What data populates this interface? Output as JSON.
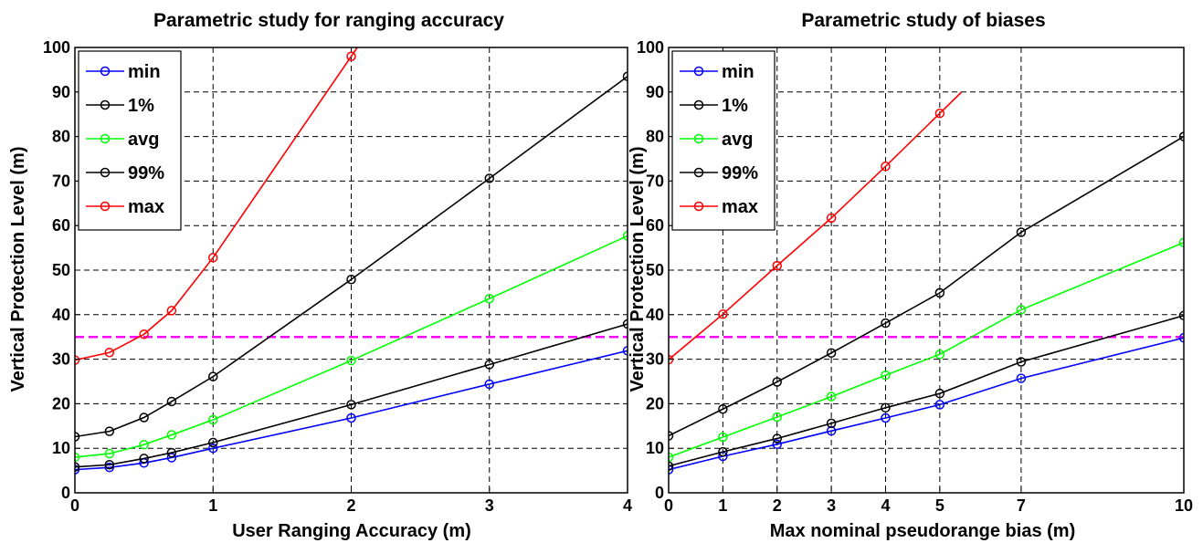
{
  "chart_data": [
    {
      "type": "line",
      "title": "Parametric study for ranging accuracy",
      "xlabel": "User Ranging Accuracy (m)",
      "ylabel": "Vertical Protection Level (m)",
      "xlim": [
        0,
        4
      ],
      "ylim": [
        0,
        100
      ],
      "xticks": [
        0,
        1,
        2,
        3,
        4
      ],
      "yticks": [
        0,
        10,
        20,
        30,
        40,
        50,
        60,
        70,
        80,
        90,
        100
      ],
      "grid": true,
      "legend_position": "top-left",
      "threshold": {
        "y": 35,
        "color": "#ff00ff",
        "style": "dashed"
      },
      "x": [
        0,
        0.25,
        0.5,
        0.7,
        1,
        2,
        3,
        4
      ],
      "series": [
        {
          "name": "min",
          "color": "#0000ff",
          "values": [
            5.2,
            5.7,
            6.7,
            7.9,
            10.0,
            16.8,
            24.4,
            31.9
          ]
        },
        {
          "name": "1%",
          "color": "#000000",
          "values": [
            5.8,
            6.3,
            7.7,
            9.0,
            11.3,
            19.8,
            28.8,
            37.9
          ]
        },
        {
          "name": "avg",
          "color": "#00ff00",
          "values": [
            8.0,
            8.8,
            10.8,
            13.0,
            16.4,
            29.7,
            43.6,
            57.7
          ]
        },
        {
          "name": "99%",
          "color": "#000000",
          "values": [
            12.6,
            13.8,
            16.9,
            20.5,
            26.1,
            47.9,
            70.6,
            93.5
          ]
        },
        {
          "name": "max",
          "color": "#ff0000",
          "values": [
            29.8,
            31.5,
            35.6,
            40.9,
            52.8,
            98.0,
            null,
            null
          ]
        }
      ]
    },
    {
      "type": "line",
      "title": "Parametric study of biases",
      "xlabel": "Max nominal pseudorange bias (m)",
      "ylabel": "Vertical Protection Level (m)",
      "xlim": [
        0,
        10
      ],
      "ylim": [
        0,
        100
      ],
      "xticks": [
        0,
        1,
        2,
        3,
        4,
        5,
        7,
        10
      ],
      "xtick_positions": [
        0,
        1,
        2,
        3,
        4,
        5,
        6.5,
        9.5
      ],
      "yticks": [
        0,
        10,
        20,
        30,
        40,
        50,
        60,
        70,
        80,
        90,
        100
      ],
      "grid": true,
      "legend_position": "top-left",
      "threshold": {
        "y": 35,
        "color": "#ff00ff",
        "style": "dashed"
      },
      "x": [
        0,
        1,
        2,
        3,
        4,
        5,
        7,
        10
      ],
      "series": [
        {
          "name": "min",
          "color": "#0000ff",
          "values": [
            5.2,
            8.2,
            10.9,
            13.9,
            16.8,
            19.8,
            25.7,
            34.8
          ]
        },
        {
          "name": "1%",
          "color": "#000000",
          "values": [
            6.0,
            9.2,
            12.2,
            15.6,
            19.1,
            22.3,
            29.4,
            39.8
          ]
        },
        {
          "name": "avg",
          "color": "#00ff00",
          "values": [
            8.0,
            12.5,
            17.0,
            21.6,
            26.4,
            31.1,
            41.1,
            56.2
          ]
        },
        {
          "name": "99%",
          "color": "#000000",
          "values": [
            12.8,
            18.8,
            24.9,
            31.4,
            38.1,
            44.9,
            58.5,
            80.0
          ]
        },
        {
          "name": "max",
          "color": "#ff0000",
          "values": [
            29.9,
            40.1,
            51.0,
            61.7,
            73.3,
            85.2,
            null,
            null
          ]
        }
      ]
    }
  ]
}
